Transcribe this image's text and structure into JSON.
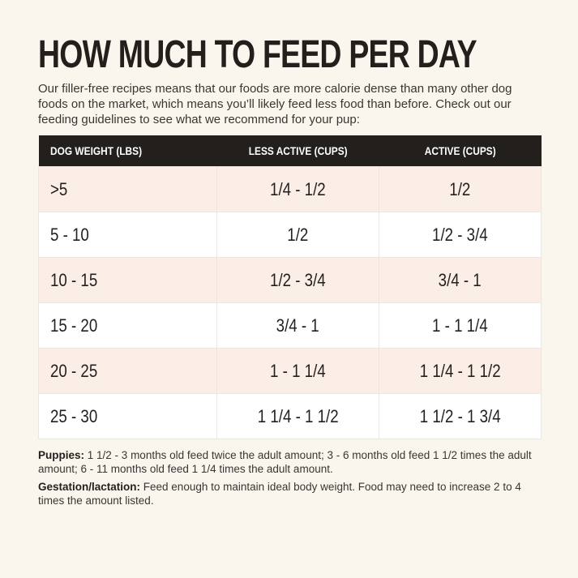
{
  "header": {
    "title": "HOW MUCH TO FEED PER DAY",
    "intro": "Our filler-free recipes means that our foods are more calorie dense than many other dog foods on the market, which means you’ll likely feed less food than before. Check out our feeding guidelines to see what we recommend for your pup:"
  },
  "table": {
    "columns": [
      "DOG WEIGHT (LBS)",
      "LESS ACTIVE (CUPS)",
      "ACTIVE (CUPS)"
    ],
    "rows": [
      [
        ">5",
        "1/4 - 1/2",
        "1/2"
      ],
      [
        "5 - 10",
        "1/2",
        "1/2 - 3/4"
      ],
      [
        "10 - 15",
        "1/2 - 3/4",
        "3/4 - 1"
      ],
      [
        "15 - 20",
        "3/4 - 1",
        "1 - 1 1/4"
      ],
      [
        "20 - 25",
        "1 - 1 1/4",
        "1 1/4 - 1 1/2"
      ],
      [
        "25 - 30",
        "1 1/4 - 1 1/2",
        "1 1/2 - 1 3/4"
      ]
    ]
  },
  "notes": [
    {
      "label": "Puppies:",
      "text": "1 1/2 - 3 months old feed twice the adult amount; 3 - 6 months old feed 1 1/2 times the adult amount; 6 - 11 months old feed 1 1/4 times the adult amount."
    },
    {
      "label": "Gestation/lactation:",
      "text": "Feed enough to maintain ideal body weight. Food may need to increase 2 to 4 times the amount listed."
    }
  ]
}
